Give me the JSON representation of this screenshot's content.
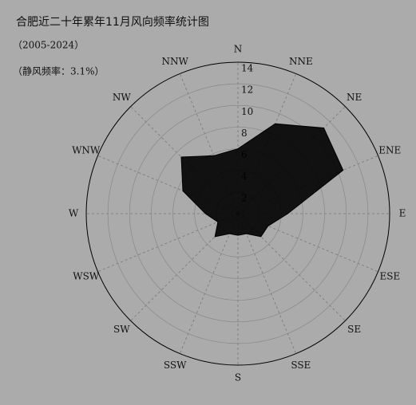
{
  "chart_data": {
    "type": "polar",
    "title": "合肥近二十年累年11月风向频率统计图",
    "subtitle": "（2005-2024）",
    "annotation": "（静风频率：3.1%）",
    "categories": [
      "N",
      "NNE",
      "NE",
      "ENE",
      "E",
      "ESE",
      "SE",
      "SSE",
      "S",
      "SSW",
      "SW",
      "WSW",
      "W",
      "WNW",
      "NW",
      "NNW"
    ],
    "values": [
      6,
      9,
      11.2,
      10.5,
      4.6,
      3,
      3,
      2,
      2,
      2,
      3,
      2,
      3,
      5.5,
      7.4,
      5.8
    ],
    "color": "#000000",
    "ylim": [
      0,
      14
    ],
    "yticks": [
      2,
      4,
      6,
      8,
      10,
      12,
      14
    ],
    "grid": true
  }
}
